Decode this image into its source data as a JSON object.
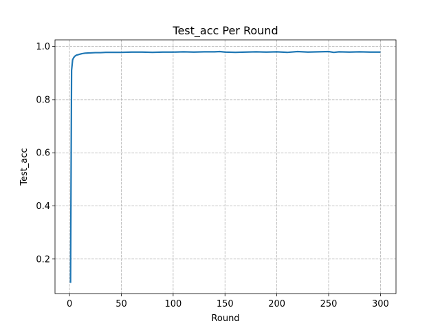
{
  "chart_data": {
    "type": "line",
    "title": "Test_acc Per Round",
    "xlabel": "Round",
    "ylabel": "Test_acc",
    "xlim": [
      -14,
      315
    ],
    "ylim": [
      0.07,
      1.025
    ],
    "xticks": [
      0,
      50,
      100,
      150,
      200,
      250,
      300
    ],
    "yticks": [
      0.2,
      0.4,
      0.6,
      0.8,
      1.0
    ],
    "ytick_labels": [
      "0.2",
      "0.4",
      "0.6",
      "0.8",
      "1.0"
    ],
    "grid": true,
    "legend": "none",
    "series": [
      {
        "color": "#1f77b4",
        "x": [
          1,
          2,
          3,
          4,
          5,
          6,
          7,
          8,
          10,
          12,
          15,
          20,
          25,
          30,
          35,
          40,
          50,
          60,
          70,
          80,
          90,
          100,
          110,
          120,
          130,
          140,
          145,
          150,
          160,
          170,
          180,
          190,
          200,
          210,
          220,
          230,
          240,
          250,
          255,
          260,
          270,
          280,
          290,
          300
        ],
        "y": [
          0.11,
          0.91,
          0.95,
          0.958,
          0.963,
          0.966,
          0.968,
          0.969,
          0.971,
          0.973,
          0.975,
          0.976,
          0.977,
          0.977,
          0.978,
          0.978,
          0.978,
          0.979,
          0.979,
          0.978,
          0.979,
          0.979,
          0.98,
          0.979,
          0.98,
          0.98,
          0.981,
          0.979,
          0.978,
          0.979,
          0.98,
          0.979,
          0.98,
          0.978,
          0.981,
          0.979,
          0.98,
          0.981,
          0.978,
          0.98,
          0.979,
          0.98,
          0.979,
          0.979
        ]
      }
    ]
  }
}
